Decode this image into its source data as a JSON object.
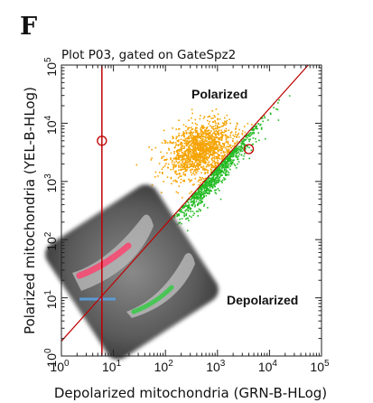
{
  "panel_label": "F",
  "chart_data": {
    "type": "scatter",
    "title": "Plot P03, gated on GateSpz2",
    "xlabel": "Depolarized mitochondria (GRN-B-HLog)",
    "ylabel": "Polarized mitochondria (YEL-B-HLog)",
    "xscale": "log",
    "yscale": "log",
    "xlim": [
      1,
      100000
    ],
    "ylim": [
      1,
      100000
    ],
    "x_ticks": [
      {
        "base": "10",
        "exp": "0"
      },
      {
        "base": "10",
        "exp": "1"
      },
      {
        "base": "10",
        "exp": "2"
      },
      {
        "base": "10",
        "exp": "3"
      },
      {
        "base": "10",
        "exp": "4"
      },
      {
        "base": "10",
        "exp": "5"
      }
    ],
    "y_ticks": [
      {
        "base": "10",
        "exp": "0"
      },
      {
        "base": "10",
        "exp": "1"
      },
      {
        "base": "10",
        "exp": "2"
      },
      {
        "base": "10",
        "exp": "3"
      },
      {
        "base": "10",
        "exp": "4"
      },
      {
        "base": "10",
        "exp": "5"
      }
    ],
    "annotations": {
      "polarized": "Polarized",
      "depolarized": "Depolarized"
    },
    "gates": {
      "vertical_x": 6,
      "vertical_handle_y": 5000,
      "diagonal_points": [
        [
          1,
          1.8
        ],
        [
          100000,
          180000
        ]
      ],
      "diagonal_handle": [
        4000,
        3600
      ]
    },
    "series": [
      {
        "color": "#f5a300",
        "center_log": [
          2.65,
          3.55
        ],
        "spread_log": [
          0.32,
          0.22
        ],
        "count": 1400
      },
      {
        "color": "#22bb22",
        "center_log": [
          2.9,
          2.9
        ],
        "spread_log": [
          0.45,
          0.08
        ],
        "count": 900
      }
    ],
    "colors": {
      "gate": "#c00000",
      "axis": "#222222",
      "inset_bar": "#5b9bd5"
    },
    "inset": {
      "description_icon": "microscopy-cell-inset"
    }
  }
}
